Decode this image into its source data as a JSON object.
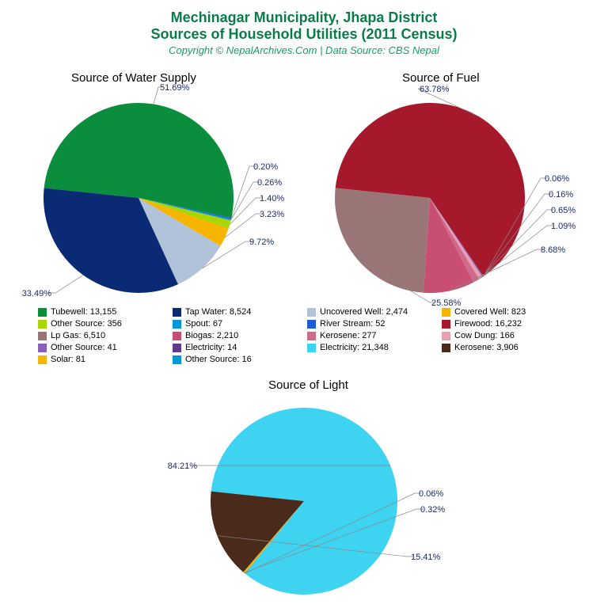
{
  "title": {
    "line1": "Mechinagar Municipality, Jhapa District",
    "line2": "Sources of Household Utilities (2011 Census)",
    "copyright": "Copyright © NepalArchives.Com | Data Source: CBS Nepal",
    "color": "#0a7b4a",
    "copyright_color": "#12a066"
  },
  "charts": {
    "water": {
      "title": "Source of Water Supply",
      "slices": [
        {
          "label": "51.69%",
          "value": 51.69,
          "color": "#0a8d3c"
        },
        {
          "label": "0.20%",
          "value": 0.2,
          "color": "#1f5bd6"
        },
        {
          "label": "0.26%",
          "value": 0.26,
          "color": "#0099d6"
        },
        {
          "label": "1.40%",
          "value": 1.4,
          "color": "#a9d600"
        },
        {
          "label": "3.23%",
          "value": 3.23,
          "color": "#f6b500"
        },
        {
          "label": "9.72%",
          "value": 9.72,
          "color": "#b0c3d9"
        },
        {
          "label": "33.49%",
          "value": 33.49,
          "color": "#0a2a73"
        }
      ]
    },
    "fuel": {
      "title": "Source of Fuel",
      "slices": [
        {
          "label": "63.78%",
          "value": 63.78,
          "color": "#a6182c"
        },
        {
          "label": "0.06%",
          "value": 0.06,
          "color": "#5a3a8a"
        },
        {
          "label": "0.16%",
          "value": 0.16,
          "color": "#8a5fb8"
        },
        {
          "label": "0.65%",
          "value": 0.65,
          "color": "#e99fb3"
        },
        {
          "label": "1.09%",
          "value": 1.09,
          "color": "#d16a8a"
        },
        {
          "label": "8.68%",
          "value": 8.68,
          "color": "#c84e72"
        },
        {
          "label": "25.58%",
          "value": 25.58,
          "color": "#9a7575"
        }
      ]
    },
    "light": {
      "title": "Source of Light",
      "slices": [
        {
          "label": "84.21%",
          "value": 84.21,
          "color": "#3fd3f2"
        },
        {
          "label": "0.06%",
          "value": 0.06,
          "color": "#0099d6"
        },
        {
          "label": "0.32%",
          "value": 0.32,
          "color": "#f6b500"
        },
        {
          "label": "15.41%",
          "value": 15.41,
          "color": "#4a2a1a"
        }
      ]
    }
  },
  "legend": [
    {
      "label": "Tubewell: 13,155",
      "color": "#0a8d3c"
    },
    {
      "label": "Tap Water: 8,524",
      "color": "#0a2a73"
    },
    {
      "label": "Uncovered Well: 2,474",
      "color": "#b0c3d9"
    },
    {
      "label": "Covered Well: 823",
      "color": "#f6b500"
    },
    {
      "label": "Other Source: 356",
      "color": "#a9d600"
    },
    {
      "label": "Spout: 67",
      "color": "#0099d6"
    },
    {
      "label": "River Stream: 52",
      "color": "#1f5bd6"
    },
    {
      "label": "Firewood: 16,232",
      "color": "#a6182c"
    },
    {
      "label": "Lp Gas: 6,510",
      "color": "#9a7575"
    },
    {
      "label": "Biogas: 2,210",
      "color": "#c84e72"
    },
    {
      "label": "Kerosene: 277",
      "color": "#d16a8a"
    },
    {
      "label": "Cow Dung: 166",
      "color": "#e99fb3"
    },
    {
      "label": "Other Source: 41",
      "color": "#8a5fb8"
    },
    {
      "label": "Electricity: 14",
      "color": "#5a3a8a"
    },
    {
      "label": "Electricity: 21,348",
      "color": "#3fd3f2"
    },
    {
      "label": "Kerosene: 3,906",
      "color": "#4a2a1a"
    },
    {
      "label": "Solar: 81",
      "color": "#f6b500"
    },
    {
      "label": "Other Source: 16",
      "color": "#0099d6"
    }
  ]
}
